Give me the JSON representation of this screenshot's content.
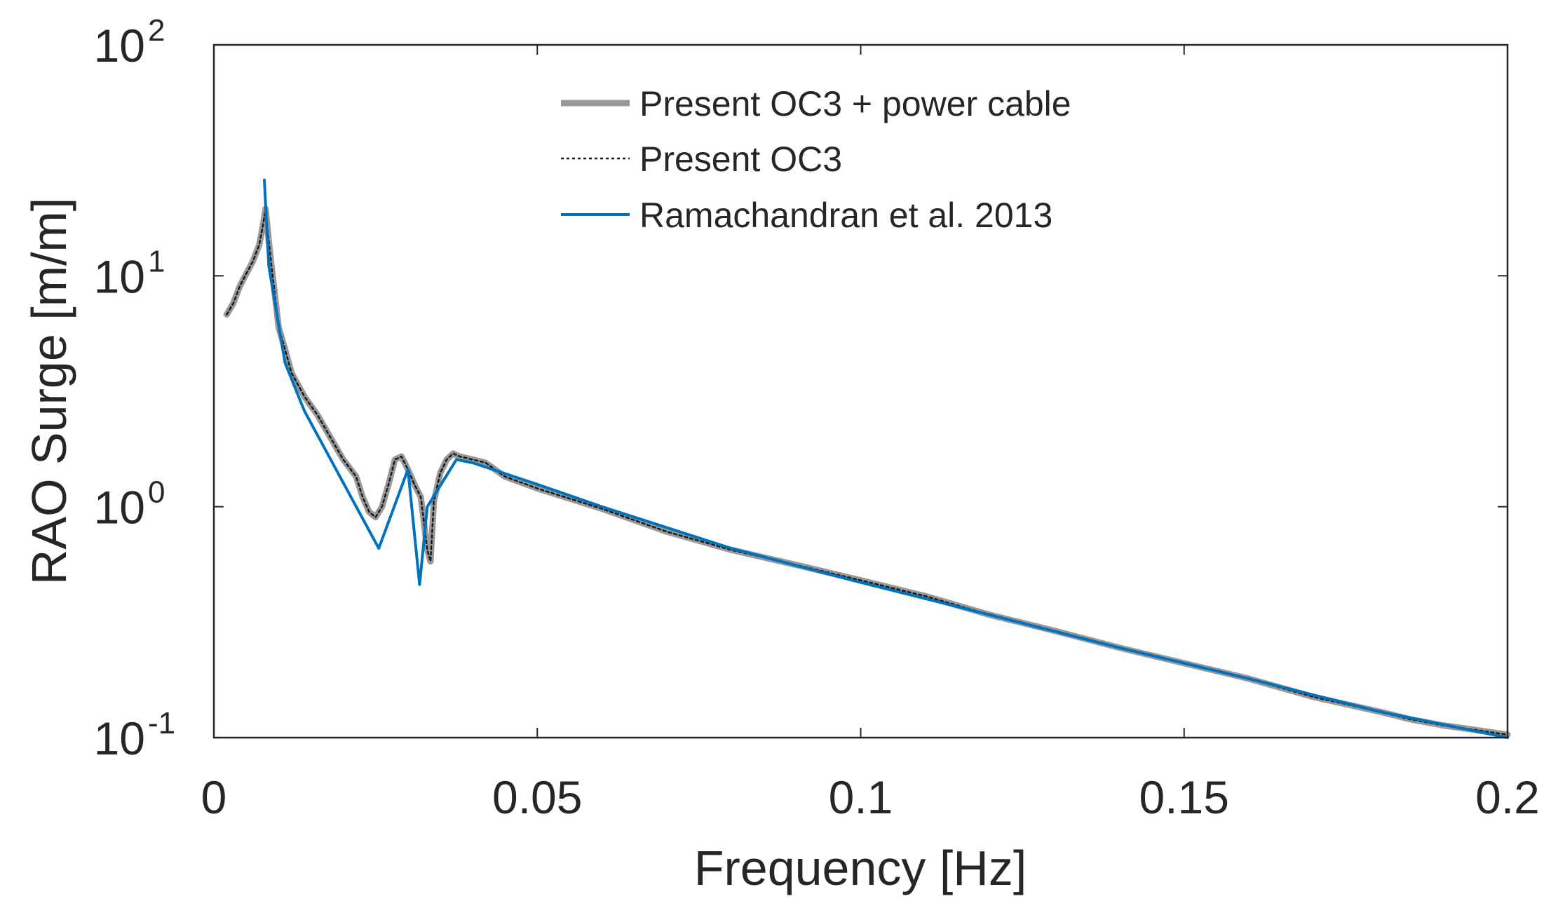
{
  "chart_data": {
    "type": "line",
    "title": "",
    "xlabel": "Frequency [Hz]",
    "ylabel": "RAO Surge [m/m]",
    "xlim": [
      0,
      0.2
    ],
    "ylim": [
      0.1,
      100
    ],
    "yscale": "log",
    "grid": false,
    "legend_position": "top-center",
    "x_ticks": [
      0,
      0.05,
      0.1,
      0.15,
      0.2
    ],
    "x_tick_labels": [
      "0",
      "0.05",
      "0.1",
      "0.15",
      "0.2"
    ],
    "y_ticks": [
      0.1,
      1,
      10,
      100
    ],
    "y_tick_labels": [
      {
        "base": "10",
        "exp": "-1"
      },
      {
        "base": "10",
        "exp": "0"
      },
      {
        "base": "10",
        "exp": "1"
      },
      {
        "base": "10",
        "exp": "2"
      }
    ],
    "series": [
      {
        "name": "Present OC3 + power cable",
        "color": "#999999",
        "style": "thick-solid",
        "x": [
          0.002,
          0.003,
          0.004,
          0.005,
          0.006,
          0.007,
          0.0075,
          0.008,
          0.0085,
          0.009,
          0.0095,
          0.01,
          0.011,
          0.012,
          0.014,
          0.016,
          0.018,
          0.02,
          0.022,
          0.023,
          0.024,
          0.025,
          0.026,
          0.027,
          0.028,
          0.029,
          0.03,
          0.031,
          0.032,
          0.033,
          0.0335,
          0.034,
          0.035,
          0.036,
          0.037,
          0.038,
          0.04,
          0.042,
          0.045,
          0.05,
          0.06,
          0.07,
          0.08,
          0.09,
          0.1,
          0.11,
          0.12,
          0.13,
          0.14,
          0.15,
          0.16,
          0.17,
          0.18,
          0.185,
          0.19,
          0.195,
          0.2
        ],
        "y": [
          6.8,
          7.6,
          9.0,
          10.2,
          11.5,
          13.6,
          16.0,
          19.5,
          14.0,
          10.5,
          8.0,
          6.0,
          4.8,
          3.8,
          3.0,
          2.5,
          2.0,
          1.6,
          1.35,
          1.1,
          0.95,
          0.9,
          1.0,
          1.25,
          1.6,
          1.65,
          1.45,
          1.25,
          1.1,
          0.65,
          0.58,
          1.05,
          1.4,
          1.6,
          1.7,
          1.65,
          1.6,
          1.55,
          1.35,
          1.2,
          0.98,
          0.78,
          0.65,
          0.56,
          0.48,
          0.41,
          0.34,
          0.29,
          0.245,
          0.21,
          0.18,
          0.15,
          0.13,
          0.12,
          0.113,
          0.108,
          0.103
        ]
      },
      {
        "name": "Present OC3",
        "color": "#1a1a1a",
        "style": "dotted",
        "x": [
          0.002,
          0.003,
          0.004,
          0.005,
          0.006,
          0.007,
          0.0075,
          0.008,
          0.0085,
          0.009,
          0.0095,
          0.01,
          0.011,
          0.012,
          0.014,
          0.016,
          0.018,
          0.02,
          0.022,
          0.023,
          0.024,
          0.025,
          0.026,
          0.027,
          0.028,
          0.029,
          0.03,
          0.031,
          0.032,
          0.033,
          0.0335,
          0.034,
          0.035,
          0.036,
          0.037,
          0.038,
          0.04,
          0.042,
          0.045,
          0.05,
          0.06,
          0.07,
          0.08,
          0.09,
          0.1,
          0.11,
          0.12,
          0.13,
          0.14,
          0.15,
          0.16,
          0.17,
          0.18,
          0.185,
          0.19,
          0.195,
          0.2
        ],
        "y": [
          6.8,
          7.6,
          9.0,
          10.2,
          11.5,
          13.6,
          16.0,
          19.5,
          14.0,
          10.5,
          8.0,
          6.0,
          4.8,
          3.8,
          3.0,
          2.5,
          2.0,
          1.6,
          1.35,
          1.1,
          0.95,
          0.9,
          1.0,
          1.25,
          1.6,
          1.65,
          1.45,
          1.25,
          1.1,
          0.65,
          0.58,
          1.05,
          1.4,
          1.6,
          1.7,
          1.65,
          1.6,
          1.55,
          1.35,
          1.2,
          0.98,
          0.78,
          0.65,
          0.56,
          0.48,
          0.41,
          0.34,
          0.29,
          0.245,
          0.21,
          0.18,
          0.15,
          0.13,
          0.12,
          0.113,
          0.108,
          0.103
        ]
      },
      {
        "name": "Ramachandran et al. 2013",
        "color": "#0072BD",
        "style": "solid",
        "x": [
          0.0078,
          0.0085,
          0.011,
          0.014,
          0.0255,
          0.03,
          0.0318,
          0.033,
          0.0375,
          0.04,
          0.05,
          0.06,
          0.08,
          0.1,
          0.12,
          0.14,
          0.16,
          0.18,
          0.2
        ],
        "y": [
          26.0,
          11.0,
          4.2,
          2.6,
          0.66,
          1.45,
          0.46,
          1.0,
          1.6,
          1.55,
          1.25,
          1.0,
          0.66,
          0.47,
          0.34,
          0.245,
          0.18,
          0.13,
          0.1
        ]
      }
    ]
  }
}
